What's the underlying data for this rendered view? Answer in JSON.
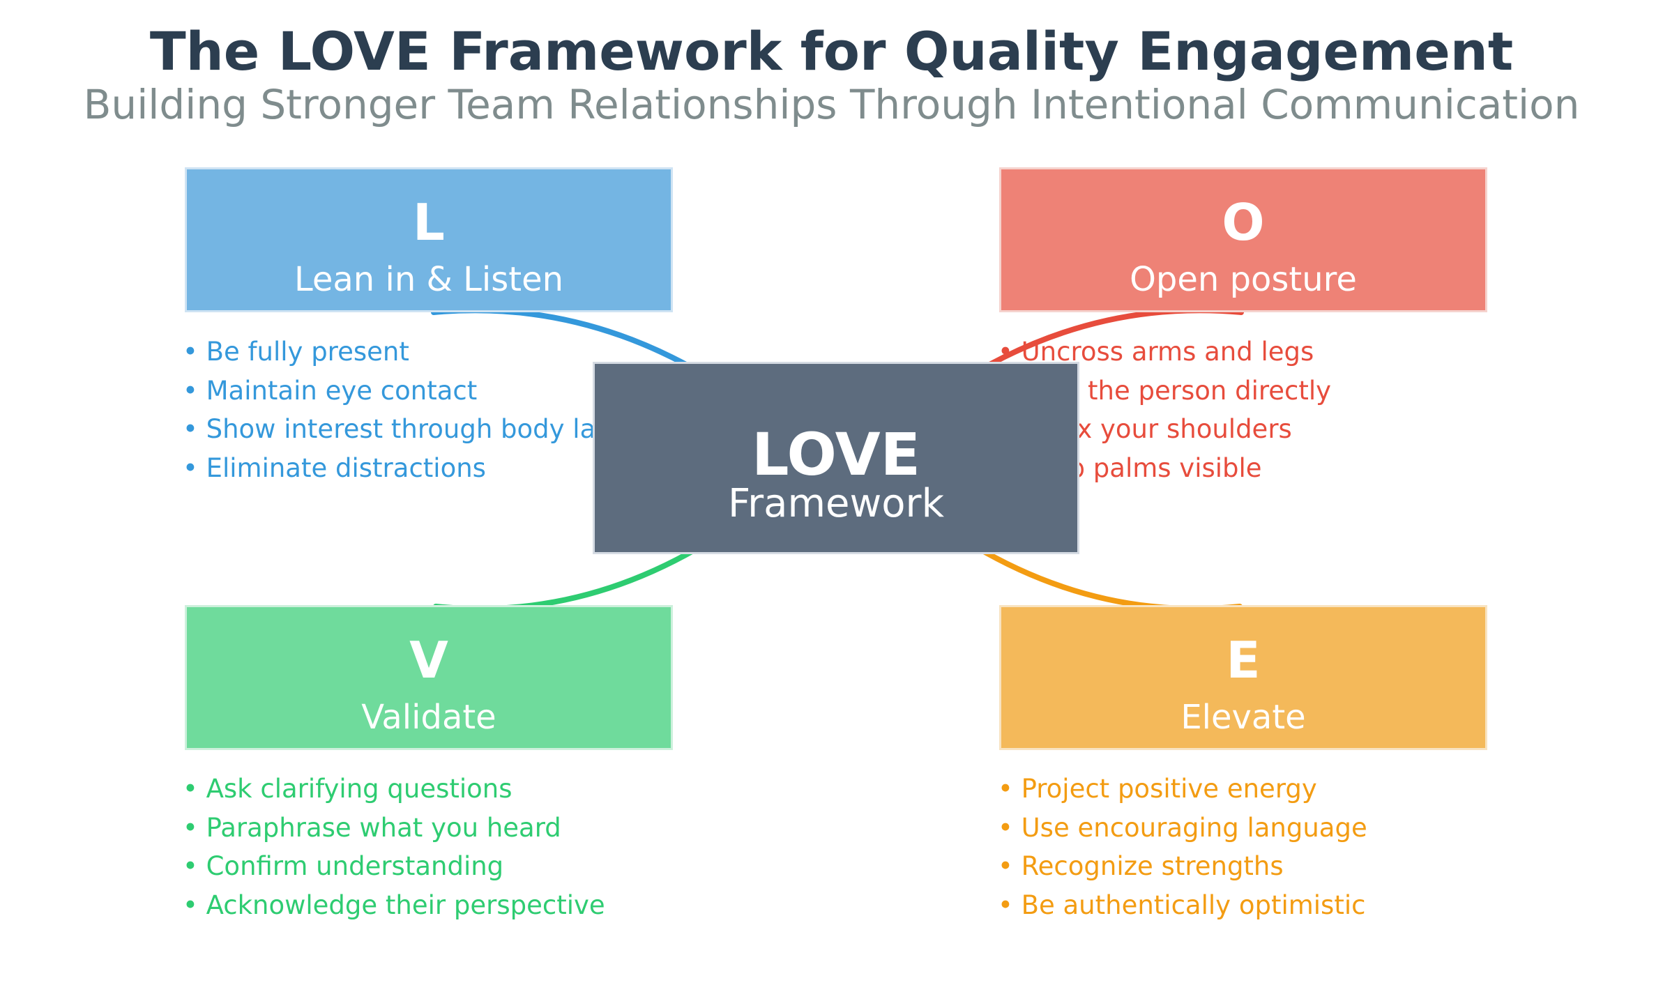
{
  "header": {
    "title": "The LOVE Framework for Quality Engagement",
    "subtitle": "Building Stronger Team Relationships Through Intentional Communication"
  },
  "center": {
    "title": "LOVE",
    "subtitle": "Framework",
    "color": "#5d6c7e"
  },
  "pillars": [
    {
      "letter": "L",
      "name": "Lean in & Listen",
      "color": "#3498db",
      "bullets": [
        "Be fully present",
        "Maintain eye contact",
        "Show interest through body language",
        "Eliminate distractions"
      ]
    },
    {
      "letter": "O",
      "name": "Open posture",
      "color": "#e74c3c",
      "bullets": [
        "Uncross arms and legs",
        "Face the person directly",
        "Relax your shoulders",
        "Keep palms visible"
      ]
    },
    {
      "letter": "V",
      "name": "Validate",
      "color": "#2ecc71",
      "bullets": [
        "Ask clarifying questions",
        "Paraphrase what you heard",
        "Confirm understanding",
        "Acknowledge their perspective"
      ]
    },
    {
      "letter": "E",
      "name": "Elevate",
      "color": "#f39c12",
      "bullets": [
        "Project positive energy",
        "Use encouraging language",
        "Recognize strengths",
        "Be authentically optimistic"
      ]
    }
  ]
}
